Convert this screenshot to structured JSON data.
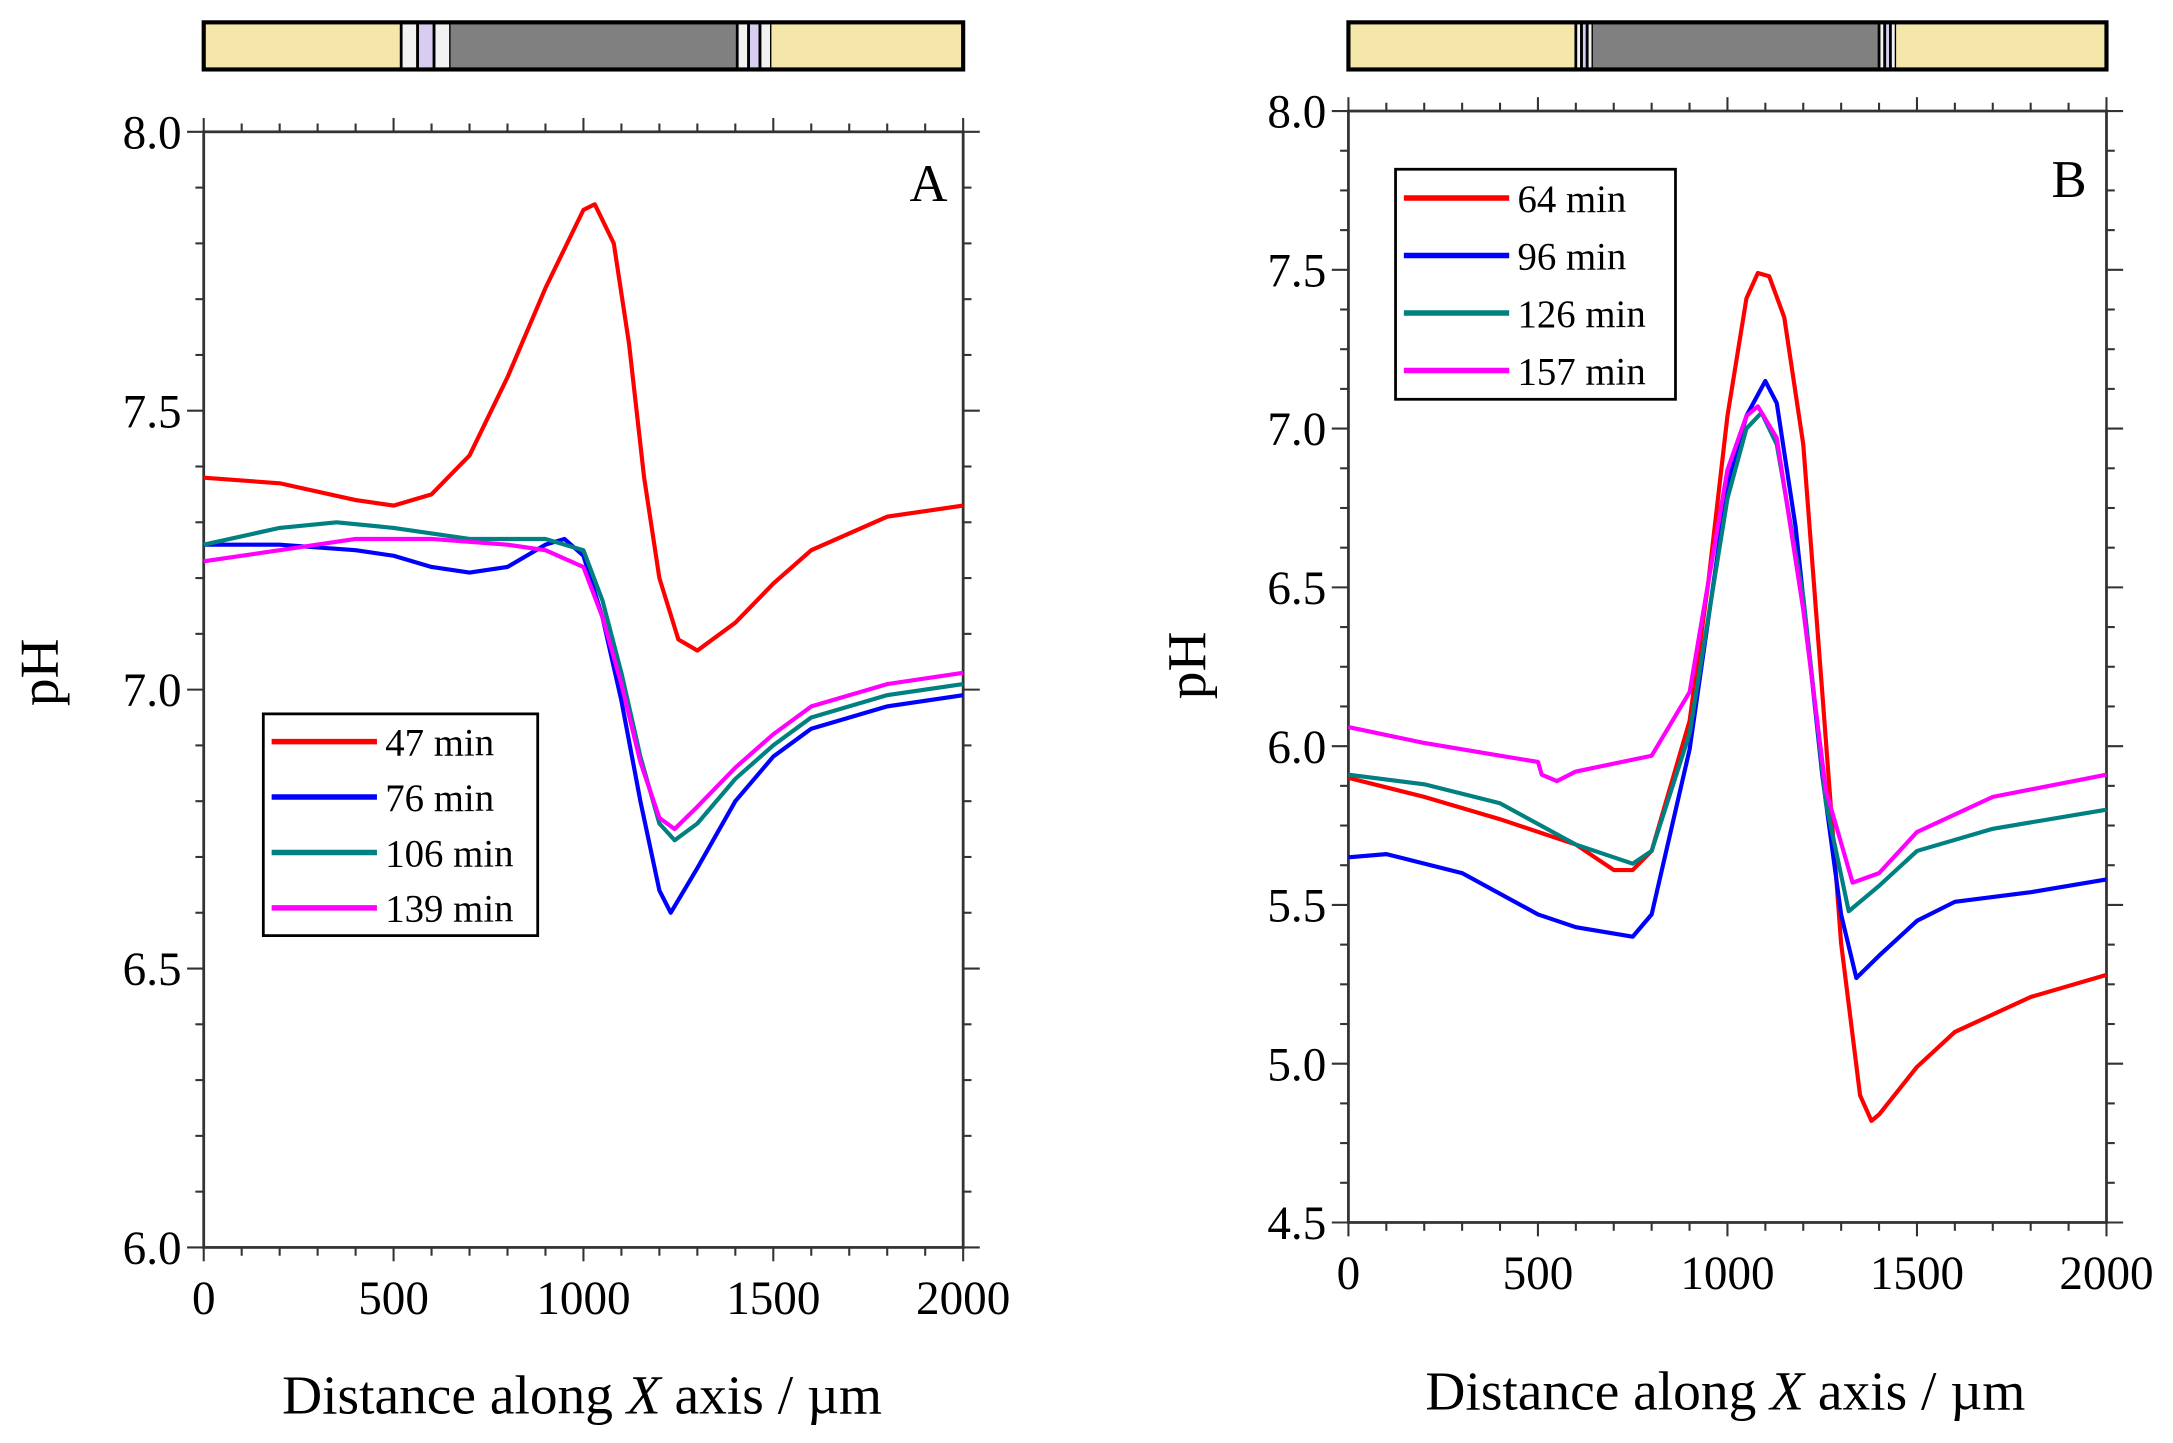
{
  "chart_data": [
    {
      "type": "line",
      "panel_label": "A",
      "xlabel": {
        "pre": "Distance along ",
        "italic": "X",
        "post": " axis / µm"
      },
      "ylabel": "pH",
      "xlim": [
        0,
        2000
      ],
      "ylim": [
        6.0,
        8.0
      ],
      "xticks": [
        0,
        500,
        1000,
        1500,
        2000
      ],
      "yticks": [
        6.0,
        6.5,
        7.0,
        7.5,
        8.0
      ],
      "ytick_labels": [
        "6.0",
        "6.5",
        "7.0",
        "7.5",
        "8.0"
      ],
      "legend_position": "center-left",
      "electrode_bar": [
        {
          "kind": "insulator",
          "from": 0,
          "to": 520
        },
        {
          "kind": "stripes",
          "from": 520,
          "to": 650
        },
        {
          "kind": "metal",
          "from": 650,
          "to": 1405
        },
        {
          "kind": "stripes",
          "from": 1405,
          "to": 1495
        },
        {
          "kind": "insulator",
          "from": 1495,
          "to": 2000
        }
      ],
      "series": [
        {
          "name": "47 min",
          "color": "#ff0000",
          "x": [
            0,
            200,
            400,
            500,
            600,
            700,
            800,
            900,
            1000,
            1030,
            1080,
            1120,
            1160,
            1200,
            1250,
            1300,
            1400,
            1500,
            1600,
            1800,
            2000
          ],
          "y": [
            7.38,
            7.37,
            7.34,
            7.33,
            7.35,
            7.42,
            7.56,
            7.72,
            7.86,
            7.87,
            7.8,
            7.62,
            7.38,
            7.2,
            7.09,
            7.07,
            7.12,
            7.19,
            7.25,
            7.31,
            7.33
          ]
        },
        {
          "name": "76 min",
          "color": "#0000ff",
          "x": [
            0,
            200,
            400,
            500,
            600,
            700,
            800,
            900,
            950,
            1000,
            1050,
            1100,
            1150,
            1200,
            1230,
            1300,
            1400,
            1500,
            1600,
            1800,
            2000
          ],
          "y": [
            7.26,
            7.26,
            7.25,
            7.24,
            7.22,
            7.21,
            7.22,
            7.26,
            7.27,
            7.24,
            7.13,
            6.98,
            6.8,
            6.64,
            6.6,
            6.68,
            6.8,
            6.88,
            6.93,
            6.97,
            6.99
          ]
        },
        {
          "name": "106 min",
          "color": "#008080",
          "x": [
            0,
            200,
            350,
            500,
            700,
            900,
            1000,
            1050,
            1100,
            1150,
            1200,
            1240,
            1300,
            1400,
            1500,
            1600,
            1800,
            2000
          ],
          "y": [
            7.26,
            7.29,
            7.3,
            7.29,
            7.27,
            7.27,
            7.25,
            7.16,
            7.03,
            6.88,
            6.76,
            6.73,
            6.76,
            6.84,
            6.9,
            6.95,
            6.99,
            7.01
          ]
        },
        {
          "name": "139 min",
          "color": "#ff00ff",
          "x": [
            0,
            200,
            400,
            600,
            800,
            900,
            1000,
            1050,
            1100,
            1150,
            1200,
            1240,
            1300,
            1400,
            1500,
            1600,
            1800,
            2000
          ],
          "y": [
            7.23,
            7.25,
            7.27,
            7.27,
            7.26,
            7.25,
            7.22,
            7.13,
            7.01,
            6.87,
            6.77,
            6.75,
            6.79,
            6.86,
            6.92,
            6.97,
            7.01,
            7.03
          ]
        }
      ]
    },
    {
      "type": "line",
      "panel_label": "B",
      "xlabel": {
        "pre": "Distance along ",
        "italic": "X",
        "post": " axis / µm"
      },
      "ylabel": "pH",
      "xlim": [
        0,
        2000
      ],
      "ylim": [
        4.5,
        8.0
      ],
      "xticks": [
        0,
        500,
        1000,
        1500,
        2000
      ],
      "yticks": [
        4.5,
        5.0,
        5.5,
        6.0,
        6.5,
        7.0,
        7.5,
        8.0
      ],
      "ytick_labels": [
        "4.5",
        "5.0",
        "5.5",
        "6.0",
        "6.5",
        "7.0",
        "7.5",
        "8.0"
      ],
      "legend_position": "top-left",
      "electrode_bar": [
        {
          "kind": "insulator",
          "from": 0,
          "to": 600
        },
        {
          "kind": "stripes",
          "from": 600,
          "to": 645
        },
        {
          "kind": "metal",
          "from": 645,
          "to": 1400
        },
        {
          "kind": "stripes",
          "from": 1400,
          "to": 1445
        },
        {
          "kind": "insulator",
          "from": 1445,
          "to": 2000
        }
      ],
      "series": [
        {
          "name": "64 min",
          "color": "#ff0000",
          "x": [
            0,
            200,
            400,
            600,
            700,
            750,
            800,
            900,
            950,
            1000,
            1050,
            1080,
            1110,
            1150,
            1200,
            1250,
            1300,
            1350,
            1380,
            1400,
            1500,
            1600,
            1800,
            2000
          ],
          "y": [
            5.9,
            5.84,
            5.77,
            5.69,
            5.61,
            5.61,
            5.67,
            6.08,
            6.52,
            7.04,
            7.41,
            7.49,
            7.48,
            7.35,
            6.95,
            6.17,
            5.38,
            4.9,
            4.82,
            4.84,
            4.99,
            5.1,
            5.21,
            5.28
          ]
        },
        {
          "name": "96 min",
          "color": "#0000ff",
          "x": [
            0,
            100,
            300,
            500,
            600,
            750,
            800,
            900,
            1000,
            1050,
            1100,
            1130,
            1180,
            1250,
            1300,
            1340,
            1400,
            1500,
            1600,
            1800,
            2000
          ],
          "y": [
            5.65,
            5.66,
            5.6,
            5.47,
            5.43,
            5.4,
            5.47,
            5.99,
            6.82,
            7.04,
            7.15,
            7.08,
            6.69,
            5.91,
            5.47,
            5.27,
            5.34,
            5.45,
            5.51,
            5.54,
            5.58
          ]
        },
        {
          "name": "126 min",
          "color": "#008080",
          "x": [
            0,
            200,
            400,
            600,
            750,
            800,
            900,
            1000,
            1050,
            1090,
            1130,
            1200,
            1260,
            1320,
            1400,
            1500,
            1700,
            2000
          ],
          "y": [
            5.91,
            5.88,
            5.82,
            5.69,
            5.63,
            5.67,
            6.04,
            6.78,
            7.0,
            7.05,
            6.95,
            6.47,
            5.82,
            5.48,
            5.56,
            5.67,
            5.74,
            5.8
          ]
        },
        {
          "name": "157 min",
          "color": "#ff00ff",
          "x": [
            0,
            200,
            400,
            500,
            510,
            550,
            600,
            800,
            900,
            1000,
            1050,
            1080,
            1130,
            1200,
            1260,
            1330,
            1400,
            1500,
            1700,
            2000
          ],
          "y": [
            6.06,
            6.01,
            5.97,
            5.95,
            5.91,
            5.89,
            5.92,
            5.97,
            6.17,
            6.87,
            7.04,
            7.07,
            6.97,
            6.43,
            5.86,
            5.57,
            5.6,
            5.73,
            5.84,
            5.91
          ]
        }
      ]
    }
  ],
  "colors": {
    "insulator": "#f5e6aa",
    "metal": "#808080",
    "stripe_white": "#f2f2f2",
    "stripe_lavender": "#d8ccf0"
  }
}
